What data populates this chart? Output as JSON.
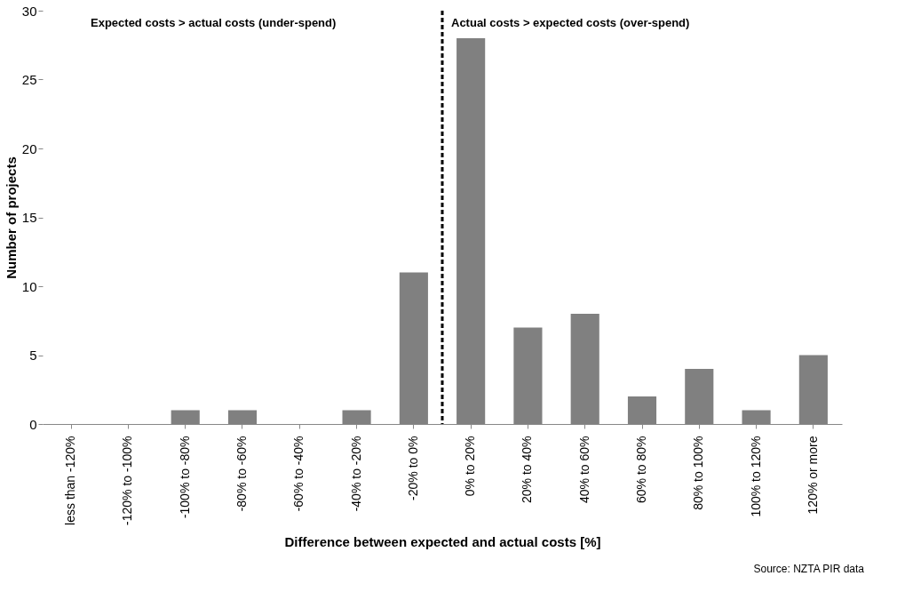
{
  "chart_data": {
    "type": "bar",
    "xlabel": "Difference between expected and actual costs [%]",
    "ylabel": "Number of projects",
    "categories": [
      "less than -120%",
      "-120% to -100%",
      "-100% to -80%",
      "-80% to -60%",
      "-60% to -40%",
      "-40% to -20%",
      "-20% to 0%",
      "0% to 20%",
      "20% to 40%",
      "40% to 60%",
      "60% to 80%",
      "80% to 100%",
      "100% to 120%",
      "120% or more"
    ],
    "values": [
      0,
      0,
      1,
      1,
      0,
      1,
      11,
      28,
      7,
      8,
      2,
      4,
      1,
      5
    ],
    "color": "#808080",
    "ylim": [
      0,
      30
    ],
    "yticks": [
      0,
      5,
      10,
      15,
      20,
      25,
      30
    ],
    "grid": false,
    "annotations": [
      "Expected costs > actual costs (under-spend)",
      "Actual costs > expected costs (over-spend)",
      "Source: NZTA PIR data"
    ]
  }
}
